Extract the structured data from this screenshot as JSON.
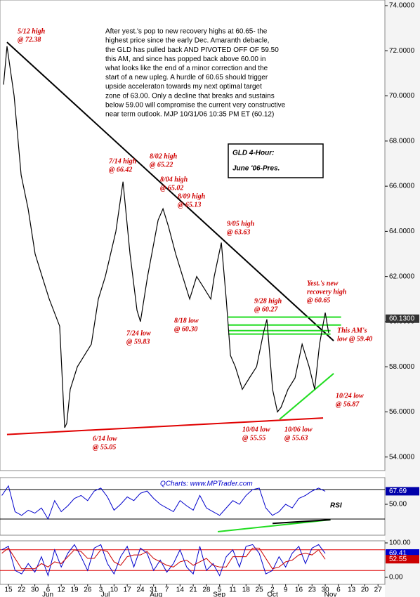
{
  "chart_data": {
    "type": "line",
    "title": [
      "GLD 4-Hour:",
      "June '06-Pres."
    ],
    "commentary": [
      "After yest.'s pop to new recovery highs at 60.65- the",
      "highest price since the early Dec. Amaranth debacle,",
      "the GLD has pulled back AND PIVOTED OFF OF 59.50",
      "this AM, and since has popped back above 60.00 in",
      "what looks like the end of a minor correction and the",
      "start of a new upleg.  A hurdle of 60.65 should trigger",
      "upside acceleraton towards my next optimal target",
      "zone of 63.00.  Only a decline that breaks and sustains",
      "below 59.00 will compromise the current very constructive",
      "near term outlook.  MJP 10/31/06  10:35 PM ET   (60.12)"
    ],
    "source": "QCharts: www.MPTrader.com",
    "xlim": [
      -0.64,
      28.52
    ],
    "xticks": [
      {
        "value": 0,
        "label": "15"
      },
      {
        "value": 1,
        "label": "22"
      },
      {
        "value": 2,
        "label": "30"
      },
      {
        "value": 3,
        "label": "6"
      },
      {
        "value": 4,
        "label": "12"
      },
      {
        "value": 5,
        "label": "19"
      },
      {
        "value": 6,
        "label": "26"
      },
      {
        "value": 7,
        "label": "3"
      },
      {
        "value": 8,
        "label": "10"
      },
      {
        "value": 9,
        "label": "17"
      },
      {
        "value": 10,
        "label": "24"
      },
      {
        "value": 11,
        "label": "31"
      },
      {
        "value": 12,
        "label": "7"
      },
      {
        "value": 13,
        "label": "14"
      },
      {
        "value": 14,
        "label": "21"
      },
      {
        "value": 15,
        "label": "28"
      },
      {
        "value": 16,
        "label": "5"
      },
      {
        "value": 17,
        "label": "11"
      },
      {
        "value": 18,
        "label": "18"
      },
      {
        "value": 19,
        "label": "25"
      },
      {
        "value": 20,
        "label": "2"
      },
      {
        "value": 21,
        "label": "9"
      },
      {
        "value": 22,
        "label": "16"
      },
      {
        "value": 23,
        "label": "23"
      },
      {
        "value": 24,
        "label": "30"
      },
      {
        "value": 25,
        "label": "6"
      },
      {
        "value": 26,
        "label": "13"
      },
      {
        "value": 27,
        "label": "20"
      },
      {
        "value": 28,
        "label": "27"
      }
    ],
    "month_labels": [
      {
        "value": 2.98,
        "label": "Jun"
      },
      {
        "value": 7.34,
        "label": "Jul"
      },
      {
        "value": 11.18,
        "label": "Aug"
      },
      {
        "value": 15.97,
        "label": "Sep"
      },
      {
        "value": 20.01,
        "label": "Oct"
      },
      {
        "value": 24.4,
        "label": "Nov"
      }
    ],
    "ylim": [
      53.4,
      74.25
    ],
    "yticks": [
      {
        "value": 54,
        "label": "54.0000"
      },
      {
        "value": 56,
        "label": "56.0000"
      },
      {
        "value": 58,
        "label": "58.0000"
      },
      {
        "value": 60,
        "label": "60.0000"
      },
      {
        "value": 62,
        "label": "62.0000"
      },
      {
        "value": 64,
        "label": "64.0000"
      },
      {
        "value": 66,
        "label": "66.0000"
      },
      {
        "value": 68,
        "label": "68.0000"
      },
      {
        "value": 70,
        "label": "70.0000"
      },
      {
        "value": 72,
        "label": "72.0000"
      },
      {
        "value": 74,
        "label": "74.0000"
      }
    ],
    "last_price": {
      "value": 60.13,
      "label": "60.1300"
    },
    "series": [
      {
        "color": "#000000",
        "x": [
          -0.37,
          -0.11,
          0.43,
          0.96,
          1.49,
          2.02,
          2.55,
          3.09,
          3.88,
          4.26,
          4.42,
          4.68,
          5.22,
          5.75,
          6.28,
          6.81,
          7.34,
          8.14,
          8.68,
          9.21,
          9.74,
          10.0,
          10.54,
          11.34,
          11.71,
          12.13,
          12.67,
          13.2,
          13.73,
          14.26,
          14.8,
          15.33,
          15.59,
          16.13,
          16.5,
          16.82,
          17.19,
          17.72,
          18.25,
          18.8,
          19.32,
          19.58,
          20.01,
          20.38,
          20.65,
          21.18,
          21.71,
          22.25,
          22.78,
          23.2,
          23.57,
          24.0,
          24.26
        ],
        "values": [
          70.5,
          72.2,
          70,
          66.5,
          65,
          63,
          62,
          61,
          59.8,
          55.3,
          55.5,
          57,
          58,
          58.5,
          59,
          61,
          62,
          64,
          66.2,
          63,
          60.5,
          60,
          62,
          64.5,
          65,
          64.2,
          63,
          62,
          61,
          62,
          61.5,
          61,
          62,
          63.5,
          61,
          58.5,
          58,
          57,
          57.5,
          58,
          59.5,
          60.1,
          57,
          56,
          56.2,
          57,
          57.5,
          59,
          58,
          57,
          59,
          60.4,
          59.5
        ]
      }
    ],
    "trendlines": [
      {
        "color": "#000000",
        "x": [
          -0.11,
          24.64
        ],
        "values": [
          72.38,
          59.15
        ]
      },
      {
        "color": "#e00000",
        "x": [
          -0.11,
          23.84
        ],
        "values": [
          55.0,
          55.73
        ]
      },
      {
        "color": "#22dd22",
        "x": [
          16.65,
          25.2
        ],
        "values": [
          60.2,
          60.2
        ]
      },
      {
        "color": "#22dd22",
        "x": [
          16.65,
          25.2
        ],
        "values": [
          59.85,
          59.85
        ]
      },
      {
        "color": "#22dd22",
        "x": [
          16.65,
          24.4
        ],
        "values": [
          59.6,
          59.6
        ]
      },
      {
        "color": "#22dd22",
        "x": [
          16.65,
          24.4
        ],
        "values": [
          59.45,
          59.45
        ]
      },
      {
        "color": "#22dd22",
        "x": [
          20.54,
          24.64
        ],
        "values": [
          55.67,
          57.7
        ]
      }
    ],
    "annotations": [
      {
        "text": [
          "5/12 high",
          "@ 72.38"
        ]
      },
      {
        "text": [
          "7/14 high",
          "@ 66.42"
        ]
      },
      {
        "text": [
          "8/02 high",
          "@ 65.22"
        ]
      },
      {
        "text": [
          "8/04 high",
          "@ 65.02"
        ]
      },
      {
        "text": [
          "8/09 high",
          "@ 65.13"
        ]
      },
      {
        "text": [
          "9/05 high",
          "@ 63.63"
        ]
      },
      {
        "text": [
          "9/28 high",
          "@ 60.27"
        ]
      },
      {
        "text": [
          "Yest.'s new",
          "recovery high",
          "@ 60.65"
        ]
      },
      {
        "text": [
          "This AM's",
          "low @ 59.40"
        ]
      },
      {
        "text": [
          "7/24 low",
          "@ 59.83"
        ]
      },
      {
        "text": [
          "8/18 low",
          "@ 60.30"
        ]
      },
      {
        "text": [
          "10/24 low",
          "@ 56.87"
        ]
      },
      {
        "text": [
          "6/14 low",
          "@ 55.05"
        ]
      },
      {
        "text": [
          "10/04 low",
          "@ 55.55"
        ]
      },
      {
        "text": [
          "10/06 low",
          "@ 55.63"
        ]
      }
    ],
    "x_shared": [
      -0.5,
      0,
      0.5,
      1,
      1.5,
      2,
      2.5,
      3,
      3.5,
      4,
      4.5,
      5,
      5.5,
      6,
      6.5,
      7,
      7.5,
      8,
      8.5,
      9,
      9.5,
      10,
      10.5,
      11,
      11.5,
      12,
      12.5,
      13,
      13.5,
      14,
      14.5,
      15,
      15.5,
      16,
      16.5,
      17,
      17.5,
      18,
      18.5,
      19,
      19.5,
      20,
      20.5,
      21,
      21.5,
      22,
      22.5,
      23,
      23.5,
      24
    ],
    "rsi": {
      "label": "RSI",
      "color": "#0000cc",
      "ylim": [
        8.1,
        86.2
      ],
      "yticks": [
        {
          "value": 50,
          "label": "50.00"
        }
      ],
      "levels": [
        30,
        70
      ],
      "last": {
        "value": 67.69,
        "label": "67.69"
      },
      "values": [
        62,
        75,
        40,
        35,
        42,
        38,
        45,
        30,
        55,
        40,
        48,
        58,
        62,
        55,
        68,
        72,
        60,
        42,
        50,
        60,
        55,
        65,
        68,
        58,
        50,
        45,
        40,
        55,
        48,
        42,
        62,
        45,
        40,
        35,
        45,
        55,
        50,
        62,
        70,
        72,
        45,
        35,
        40,
        50,
        45,
        58,
        62,
        68,
        72,
        67.69
      ],
      "trendlines": [
        {
          "color": "#22dd22",
          "x": [
            15.86,
            24.4
          ],
          "values": [
            12.9,
            29
          ]
        },
        {
          "color": "#000000",
          "x": [
            20.01,
            24.4
          ],
          "values": [
            24,
            29
          ]
        }
      ]
    },
    "stoch": {
      "ylim": [
        -20.4,
        106.1
      ],
      "yticks": [
        {
          "value": 100,
          "label": "100.00"
        },
        {
          "value": 0,
          "label": "0.00"
        }
      ],
      "levels": [
        20,
        80
      ],
      "series": [
        {
          "color": "#0000cc",
          "last": {
            "value": 69.41,
            "label": "69.41"
          },
          "values": [
            80,
            90,
            20,
            10,
            40,
            15,
            60,
            5,
            80,
            30,
            70,
            95,
            60,
            20,
            85,
            95,
            40,
            10,
            60,
            90,
            30,
            85,
            70,
            20,
            50,
            15,
            40,
            80,
            30,
            10,
            90,
            20,
            40,
            5,
            60,
            80,
            30,
            90,
            95,
            70,
            10,
            20,
            60,
            30,
            70,
            90,
            40,
            85,
            95,
            69.41
          ]
        },
        {
          "color": "#cc0000",
          "last": {
            "value": 52.55,
            "label": "52.55"
          },
          "values": [
            70,
            85,
            55,
            25,
            25,
            25,
            40,
            30,
            45,
            40,
            60,
            80,
            75,
            55,
            55,
            80,
            75,
            45,
            35,
            60,
            65,
            65,
            75,
            55,
            45,
            35,
            30,
            45,
            50,
            35,
            45,
            55,
            35,
            30,
            30,
            60,
            60,
            60,
            85,
            85,
            55,
            25,
            30,
            45,
            50,
            65,
            70,
            65,
            80,
            52.55
          ]
        }
      ]
    }
  }
}
